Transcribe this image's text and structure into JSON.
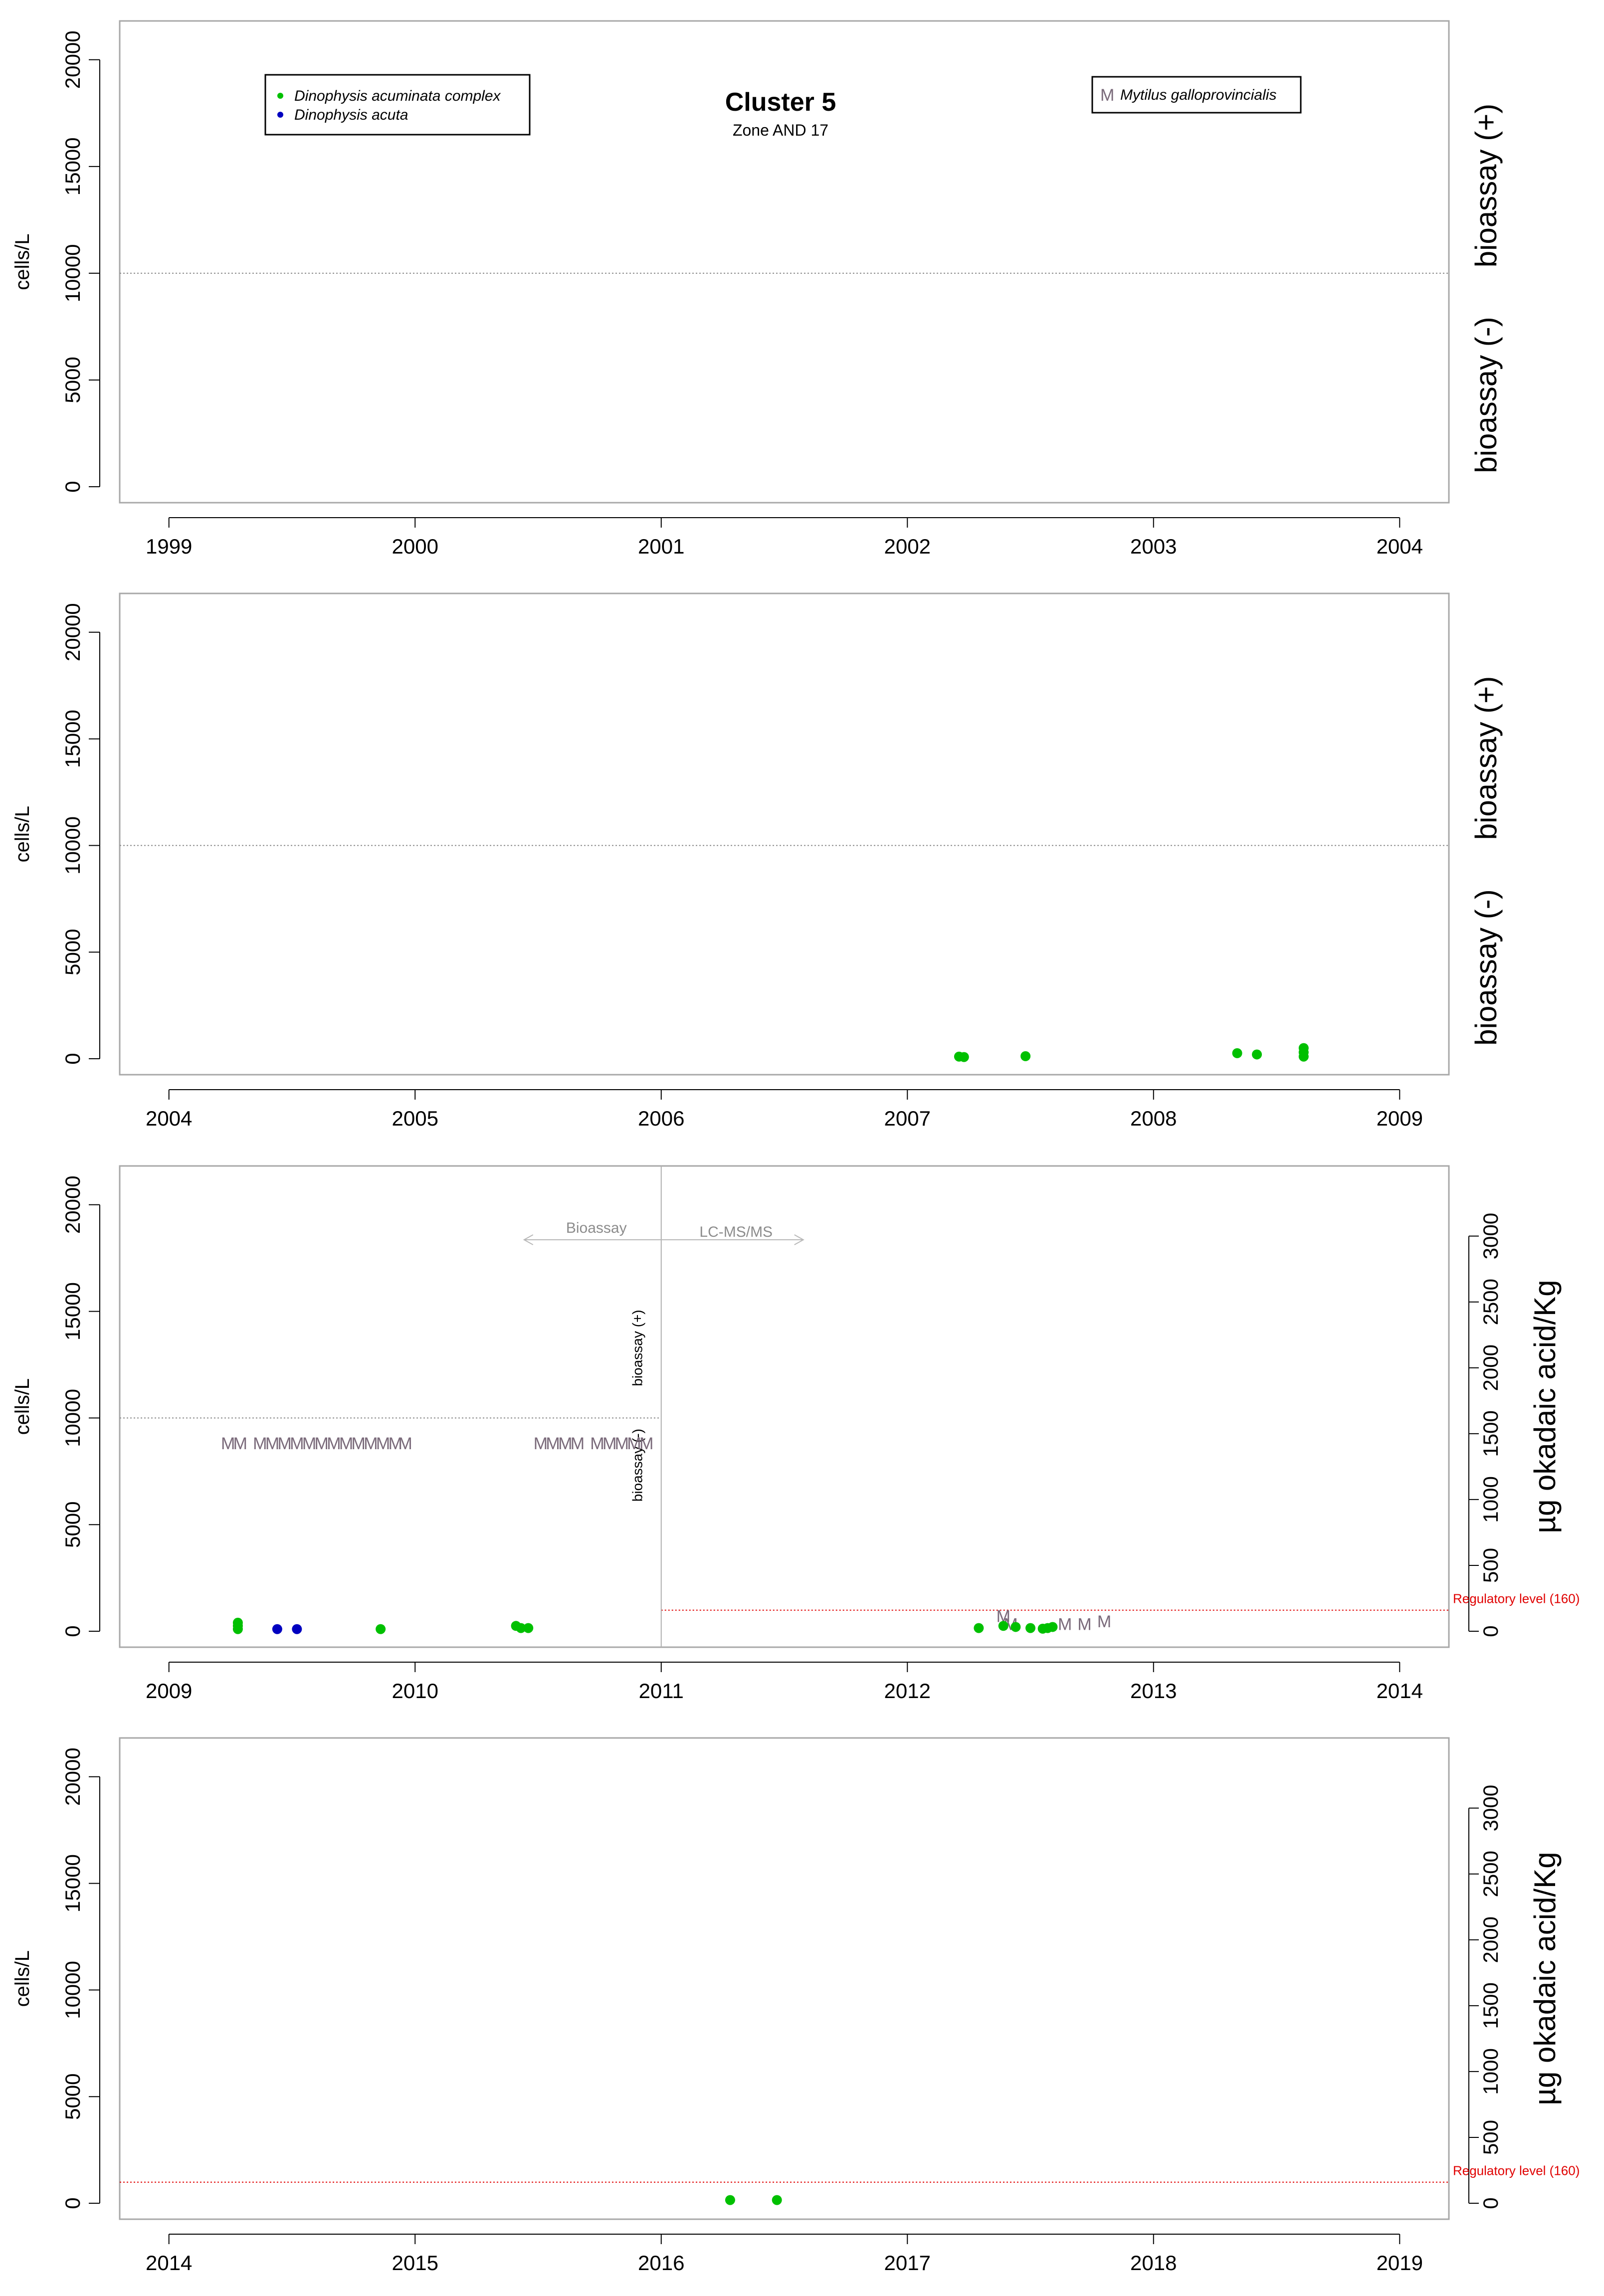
{
  "chart_data": [
    {
      "type": "scatter",
      "title": "Cluster 5",
      "subtitle": "Zone AND 17",
      "ylabel": "cells/L",
      "ylim": [
        0,
        21000
      ],
      "yticks": [
        0,
        5000,
        10000,
        15000,
        20000
      ],
      "xlim": [
        1998.8,
        2004.2
      ],
      "xticks": [
        1999,
        2000,
        2001,
        2002,
        2003,
        2004
      ],
      "threshold": 10000,
      "right_label_upper": "bioassay (+)",
      "right_label_lower": "bioassay (-)",
      "legend_species": [
        {
          "name": "Dinophysis acuminata complex",
          "color": "#00c000"
        },
        {
          "name": "Dinophysis acuta",
          "color": "#0000c0"
        }
      ],
      "legend_mussel": {
        "marker": "M",
        "name": "Mytilus galloprovincialis"
      },
      "series": []
    },
    {
      "type": "scatter",
      "ylabel": "cells/L",
      "ylim": [
        0,
        21000
      ],
      "yticks": [
        0,
        5000,
        10000,
        15000,
        20000
      ],
      "xlim": [
        2003.8,
        2009.2
      ],
      "xticks": [
        2004,
        2005,
        2006,
        2007,
        2008,
        2009
      ],
      "threshold": 10000,
      "right_label_upper": "bioassay (+)",
      "right_label_lower": "bioassay (-)",
      "series": [
        {
          "name": "Dinophysis acuminata complex",
          "color": "#00c000",
          "points": [
            [
              2007.21,
              100
            ],
            [
              2007.23,
              80
            ],
            [
              2007.48,
              120
            ],
            [
              2008.34,
              260
            ],
            [
              2008.42,
              200
            ],
            [
              2008.61,
              500
            ],
            [
              2008.61,
              300
            ],
            [
              2008.61,
              100
            ]
          ]
        }
      ]
    },
    {
      "type": "scatter",
      "ylabel": "cells/L",
      "y2label": "µg okadaic acid/Kg",
      "ylim": [
        0,
        21000
      ],
      "yticks": [
        0,
        5000,
        10000,
        15000,
        20000
      ],
      "y2lim": [
        0,
        3400
      ],
      "y2ticks": [
        0,
        500,
        1000,
        1500,
        2000,
        2500,
        3000
      ],
      "xlim": [
        2008.8,
        2014.2
      ],
      "xticks": [
        2009,
        2010,
        2011,
        2012,
        2013,
        2014
      ],
      "threshold": 10000,
      "threshold_end": 2011,
      "method_split": 2011,
      "method_left": "Bioassay",
      "method_right": "LC-MS/MS",
      "vertical_label_upper": "bioassay (+)",
      "vertical_label_lower": "bioassay (-)",
      "regulatory_level": 160,
      "regulatory_label": "Regulatory level (160)",
      "series": [
        {
          "name": "Dinophysis acuminata complex",
          "color": "#00c000",
          "points": [
            [
              2009.28,
              400
            ],
            [
              2009.28,
              250
            ],
            [
              2009.28,
              100
            ],
            [
              2009.86,
              100
            ],
            [
              2010.41,
              250
            ],
            [
              2010.43,
              150
            ],
            [
              2010.46,
              150
            ],
            [
              2012.29,
              150
            ],
            [
              2012.39,
              250
            ],
            [
              2012.44,
              200
            ],
            [
              2012.5,
              150
            ],
            [
              2012.55,
              120
            ],
            [
              2012.57,
              150
            ],
            [
              2012.59,
              200
            ]
          ]
        },
        {
          "name": "Dinophysis acuta",
          "color": "#0000c0",
          "points": [
            [
              2009.44,
              100
            ],
            [
              2009.52,
              100
            ]
          ]
        }
      ],
      "mussel_marker": "M",
      "mussel_bioassay_x": [
        2009.24,
        2009.29,
        2009.37,
        2009.42,
        2009.47,
        2009.52,
        2009.57,
        2009.62,
        2009.67,
        2009.72,
        2009.77,
        2009.82,
        2009.87,
        2009.92,
        2009.96,
        2010.51,
        2010.56,
        2010.61,
        2010.66,
        2010.74,
        2010.79,
        2010.84,
        2010.89,
        2010.94
      ],
      "mussel_lcms": [
        [
          2012.39,
          100
        ],
        [
          2012.42,
          40
        ],
        [
          2012.64,
          40
        ],
        [
          2012.72,
          40
        ],
        [
          2012.8,
          60
        ]
      ]
    },
    {
      "type": "scatter",
      "ylabel": "cells/L",
      "y2label": "µg okadaic acid/Kg",
      "ylim": [
        0,
        21000
      ],
      "yticks": [
        0,
        5000,
        10000,
        15000,
        20000
      ],
      "y2lim": [
        0,
        3400
      ],
      "y2ticks": [
        0,
        500,
        1000,
        1500,
        2000,
        2500,
        3000
      ],
      "xlim": [
        2013.8,
        2019.2
      ],
      "xticks": [
        2014,
        2015,
        2016,
        2017,
        2018,
        2019
      ],
      "regulatory_level": 160,
      "regulatory_label": "Regulatory level (160)",
      "series": [
        {
          "name": "Dinophysis acuminata complex",
          "color": "#00c000",
          "points": [
            [
              2016.28,
              150
            ],
            [
              2016.47,
              150
            ]
          ]
        }
      ]
    }
  ]
}
